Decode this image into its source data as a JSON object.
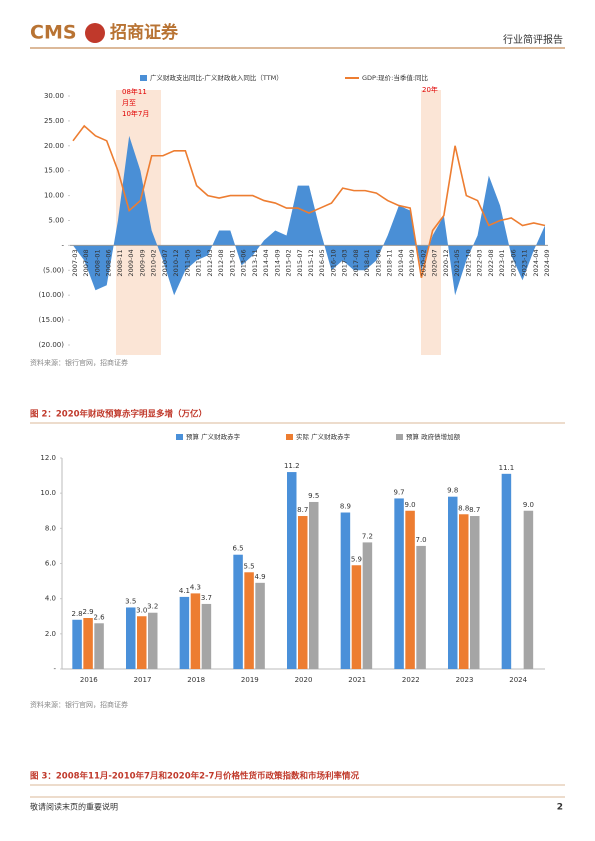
{
  "header": {
    "logo": "CMS",
    "brand": "招商证券",
    "report_type": "行业简评报告"
  },
  "chart_data": [
    {
      "type": "combo",
      "categories": [
        "2007-03",
        "2007-08",
        "2008-01",
        "2008-06",
        "2008-11",
        "2009-04",
        "2009-09",
        "2010-02",
        "2010-07",
        "2010-12",
        "2011-05",
        "2011-10",
        "2012-03",
        "2012-08",
        "2013-01",
        "2013-06",
        "2013-11",
        "2014-04",
        "2014-09",
        "2015-02",
        "2015-07",
        "2015-12",
        "2016-05",
        "2016-10",
        "2017-03",
        "2017-08",
        "2018-01",
        "2018-06",
        "2018-11",
        "2019-04",
        "2019-09",
        "2020-02",
        "2020-07",
        "2020-12",
        "2021-05",
        "2021-10",
        "2022-03",
        "2022-08",
        "2023-01",
        "2023-06",
        "2023-11",
        "2024-04",
        "2024-09"
      ],
      "series": [
        {
          "name": "广义财政支出同比-广义财政收入同比（TTM）",
          "type": "area",
          "color": "#4a8fd6",
          "values": [
            0,
            -3,
            -9,
            -8,
            5,
            22,
            15,
            3,
            -3,
            -10,
            -5,
            -3,
            -2,
            3,
            3,
            -4,
            -2,
            1,
            3,
            2,
            12,
            12,
            3,
            -5,
            -3,
            -5,
            -5,
            -3,
            2,
            8,
            7,
            -5,
            2,
            6,
            -10,
            -3,
            2,
            14,
            8,
            -2,
            -7,
            -1,
            4
          ]
        },
        {
          "name": "GDP:现价:当季值:同比",
          "type": "line",
          "color": "#ed7d31",
          "values": [
            21,
            24,
            22,
            21,
            15,
            7,
            9,
            18,
            18,
            19,
            19,
            12,
            10,
            9.5,
            10,
            10,
            10,
            9,
            8.5,
            7.5,
            7.5,
            6.5,
            7.5,
            8.5,
            11.5,
            11,
            11,
            10.5,
            9,
            8,
            7.5,
            -6.5,
            3,
            6,
            20,
            10,
            9,
            4,
            5,
            5.5,
            4,
            4.5,
            4
          ]
        }
      ],
      "ylim": [
        -20,
        30
      ],
      "yticks": [
        {
          "value": -20,
          "label": "(20.00)"
        },
        {
          "value": -15,
          "label": "(15.00)"
        },
        {
          "value": -10,
          "label": "(10.00)"
        },
        {
          "value": -5,
          "label": "(5.00)"
        },
        {
          "value": 0,
          "label": "-"
        },
        {
          "value": 5,
          "label": "5.00"
        },
        {
          "value": 10,
          "label": "10.00"
        },
        {
          "value": 15,
          "label": "15.00"
        },
        {
          "value": 20,
          "label": "20.00"
        },
        {
          "value": 25,
          "label": "25.00"
        },
        {
          "value": 30,
          "label": "30.00"
        }
      ],
      "annotations": [
        "08年11",
        "月至",
        "10年7月",
        "20年"
      ],
      "grid": false
    },
    {
      "type": "bar",
      "title": "图 2：2020年财政预算赤字明显多增（万亿）",
      "categories": [
        "2016",
        "2017",
        "2018",
        "2019",
        "2020",
        "2021",
        "2022",
        "2023",
        "2024"
      ],
      "series": [
        {
          "name": "预算 广义财政赤字",
          "color": "#4a90d9",
          "values": [
            2.8,
            3.5,
            4.1,
            6.5,
            11.2,
            8.9,
            9.7,
            9.8,
            11.1
          ],
          "value_labels": [
            "2.8",
            "3.5",
            "4.1",
            "6.5",
            "11.2",
            "8.9",
            "9.7",
            "9.8",
            "11.1"
          ]
        },
        {
          "name": "实际 广义财政赤字",
          "color": "#ed7d31",
          "values": [
            2.9,
            3.0,
            4.3,
            5.5,
            8.7,
            5.9,
            9.0,
            8.8,
            null
          ],
          "value_labels": [
            "2.9",
            "3.0",
            "4.3",
            "5.5",
            "8.7",
            "5.9",
            "9.0",
            "8.8",
            null
          ]
        },
        {
          "name": "预算 政府债增加额",
          "color": "#a5a5a5",
          "values": [
            2.6,
            3.2,
            3.7,
            4.9,
            9.5,
            7.2,
            7.0,
            8.7,
            9.0
          ],
          "value_labels": [
            "2.6",
            "3.2",
            "3.7",
            "4.9",
            "9.5",
            "7.2",
            "7.0",
            "8.7",
            "9.0"
          ]
        }
      ],
      "ylim": [
        0,
        12
      ],
      "yticks": [
        {
          "value": 0,
          "label": "-"
        },
        {
          "value": 2,
          "label": "2.0"
        },
        {
          "value": 4,
          "label": "4.0"
        },
        {
          "value": 6,
          "label": "6.0"
        },
        {
          "value": 8,
          "label": "8.0"
        },
        {
          "value": 10,
          "label": "10.0"
        },
        {
          "value": 12,
          "label": "12.0"
        }
      ],
      "grid": false
    }
  ],
  "sources": [
    "资料来源：银行官网，招商证券",
    "资料来源：银行官网，招商证券"
  ],
  "figure_3_title": "图 3：2008年11月-2010年7月和2020年2-7月价格性货币政策指数和市场利率情况",
  "footer": {
    "note": "敬请阅读末页的重要说明",
    "page": "2"
  }
}
